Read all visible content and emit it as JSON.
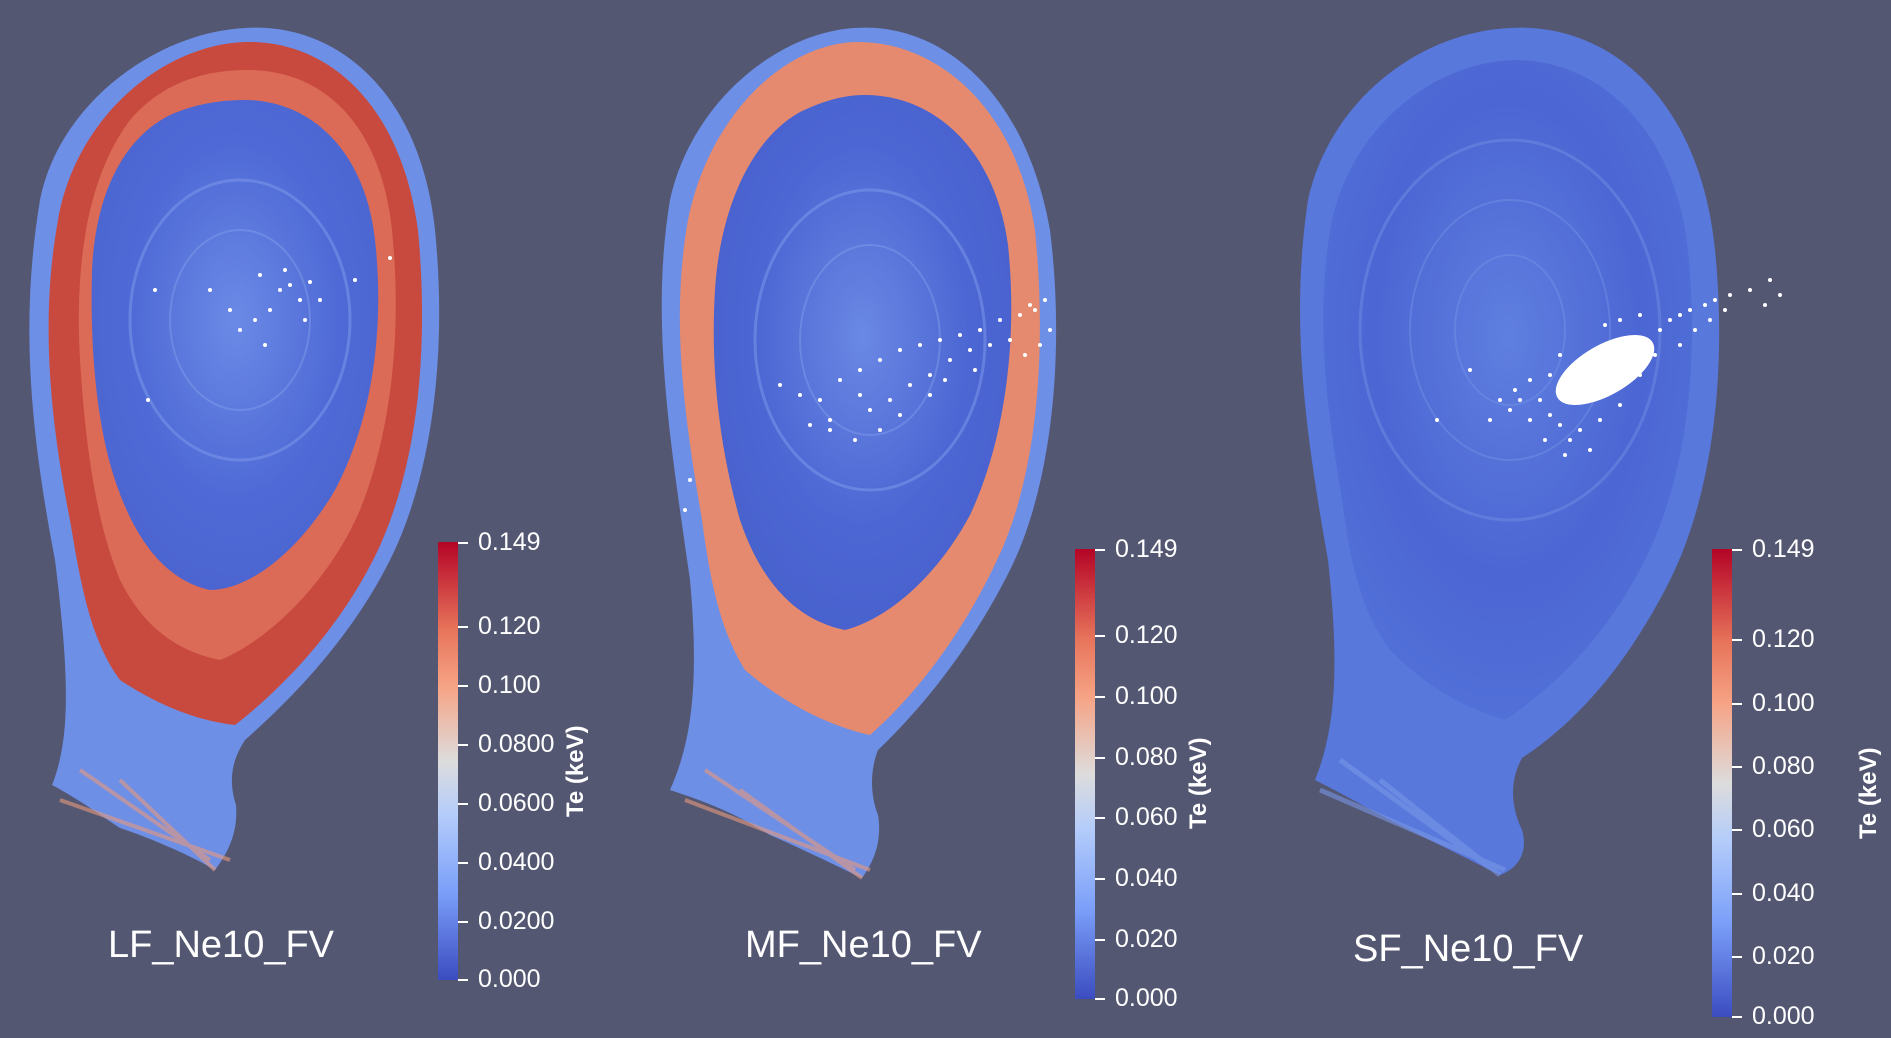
{
  "panels": [
    {
      "label": "LF_Ne10_FV",
      "colorbar": {
        "title": "Te (keV)",
        "ticks": [
          "0.149",
          "0.120",
          "0.100",
          "0.0800",
          "0.0600",
          "0.0400",
          "0.0200",
          "0.000"
        ]
      },
      "edge_heat": "strong"
    },
    {
      "label": "MF_Ne10_FV",
      "colorbar": {
        "title": "Te (keV)",
        "ticks": [
          "0.149",
          "0.120",
          "0.100",
          "0.080",
          "0.060",
          "0.040",
          "0.020",
          "0.000"
        ]
      },
      "edge_heat": "medium"
    },
    {
      "label": "SF_Ne10_FV",
      "colorbar": {
        "title": "Te (keV)",
        "ticks": [
          "0.149",
          "0.120",
          "0.100",
          "0.080",
          "0.060",
          "0.040",
          "0.020",
          "0.000"
        ]
      },
      "edge_heat": "none"
    }
  ],
  "colors": {
    "background": "#535772",
    "cold": "#3b4cc0",
    "mid": "#dddcdc",
    "hot": "#b40426",
    "impurity_markers": "#ffffff"
  }
}
